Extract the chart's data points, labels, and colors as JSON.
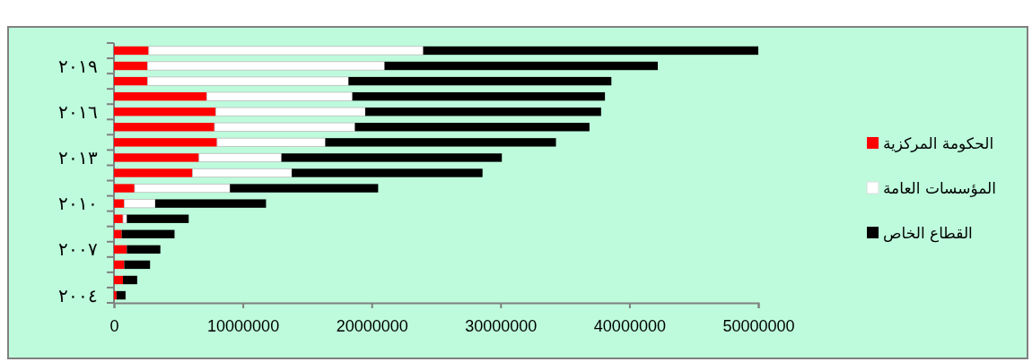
{
  "chart_data": {
    "type": "bar",
    "orientation": "horizontal",
    "stacked": true,
    "categories": [
      null,
      "٢٠١٩",
      null,
      null,
      "٢٠١٦",
      null,
      null,
      "٢٠١٣",
      null,
      null,
      "٢٠١٠",
      null,
      null,
      "٢٠٠٧",
      null,
      null,
      "٢٠٠٤"
    ],
    "series": [
      {
        "name": "الحكومة المركزية",
        "color": "#ff0000",
        "values": [
          2700000,
          2600000,
          2600000,
          7200000,
          7900000,
          7800000,
          8000000,
          6600000,
          6100000,
          1600000,
          800000,
          700000,
          600000,
          1000000,
          800000,
          700000,
          200000
        ]
      },
      {
        "name": "المؤسسات العامة",
        "color": "#ffffff",
        "values": [
          21300000,
          18400000,
          15600000,
          11300000,
          11600000,
          10900000,
          8400000,
          6400000,
          7700000,
          7400000,
          2400000,
          300000,
          0,
          0,
          0,
          0,
          0
        ]
      },
      {
        "name": "القطاع الخاص",
        "color": "#000000",
        "values": [
          26000000,
          21200000,
          20400000,
          19600000,
          18300000,
          18200000,
          17900000,
          17100000,
          14800000,
          11500000,
          8600000,
          4800000,
          4100000,
          2600000,
          2000000,
          1100000,
          700000
        ]
      }
    ],
    "xlim": [
      0,
      50000000
    ],
    "xticks": [
      0,
      10000000,
      20000000,
      30000000,
      40000000,
      50000000
    ],
    "grid": false,
    "legend": "right"
  }
}
